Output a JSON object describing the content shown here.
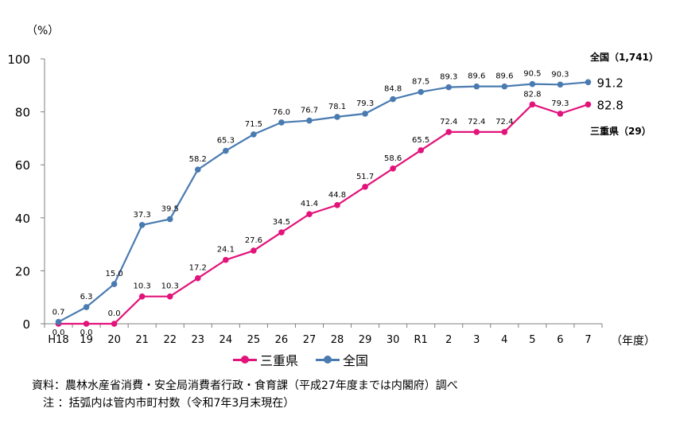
{
  "chart_data": {
    "type": "line",
    "y_unit": "（%）",
    "x_unit": "（年度）",
    "categories": [
      "H18",
      "19",
      "20",
      "21",
      "22",
      "23",
      "24",
      "25",
      "26",
      "27",
      "28",
      "29",
      "30",
      "R1",
      "2",
      "3",
      "4",
      "5",
      "6",
      "7"
    ],
    "ylim": [
      0,
      100
    ],
    "yticks": [
      0,
      20,
      40,
      60,
      80,
      100
    ],
    "grid": false,
    "legend_position": "bottom",
    "series": [
      {
        "name": "三重県",
        "color": "#e2137a",
        "values": [
          0.0,
          0.0,
          0.0,
          10.3,
          10.3,
          17.2,
          24.1,
          27.6,
          34.5,
          41.4,
          44.8,
          51.7,
          58.6,
          65.5,
          72.4,
          72.4,
          72.4,
          82.8,
          79.3,
          82.8
        ],
        "labels": [
          "0.0",
          "0.0",
          "0.0",
          "10.3",
          "10.3",
          "17.2",
          "24.1",
          "27.6",
          "34.5",
          "41.4",
          "44.8",
          "51.7",
          "58.6",
          "65.5",
          "72.4",
          "72.4",
          "72.4",
          "82.8",
          "79.3",
          "82.8"
        ],
        "end_label": "三重県（29）"
      },
      {
        "name": "全国",
        "color": "#4a7bb0",
        "values": [
          0.7,
          6.3,
          15.0,
          37.3,
          39.5,
          58.2,
          65.3,
          71.5,
          76.0,
          76.7,
          78.1,
          79.3,
          84.8,
          87.5,
          89.3,
          89.6,
          89.6,
          90.5,
          90.3,
          91.2
        ],
        "labels": [
          "0.7",
          "6.3",
          "15.0",
          "37.3",
          "39.5",
          "58.2",
          "65.3",
          "71.5",
          "76.0",
          "76.7",
          "78.1",
          "79.3",
          "84.8",
          "87.5",
          "89.3",
          "89.6",
          "89.6",
          "90.5",
          "90.3",
          "91.2"
        ],
        "end_label": "全国（1,741）"
      }
    ]
  },
  "notes": {
    "source": "資料：農林水産省消費・安全局消費者行政・食育課（平成27年度までは内閣府）調べ",
    "note": "　注 ：括弧内は管内市町村数（令和7年3月末現在）"
  }
}
